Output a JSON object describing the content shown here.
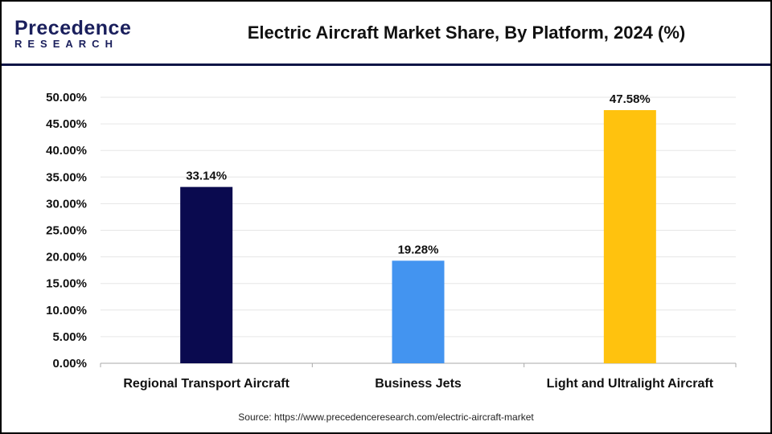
{
  "logo": {
    "line1": "Precedence",
    "line2": "RESEARCH"
  },
  "source": "Source: https://www.precedenceresearch.com/electric-aircraft-market",
  "chart_data": {
    "type": "bar",
    "title": "Electric Aircraft Market Share, By Platform, 2024 (%)",
    "categories": [
      "Regional Transport Aircraft",
      "Business Jets",
      "Light and Ultralight Aircraft"
    ],
    "values": [
      33.14,
      19.28,
      47.58
    ],
    "data_labels": [
      "33.14%",
      "19.28%",
      "47.58%"
    ],
    "colors": [
      "#0a0a4f",
      "#4394f0",
      "#ffc20e"
    ],
    "ylim": [
      0,
      50
    ],
    "yticks": [
      "0.00%",
      "5.00%",
      "10.00%",
      "15.00%",
      "20.00%",
      "25.00%",
      "30.00%",
      "35.00%",
      "40.00%",
      "45.00%",
      "50.00%"
    ],
    "grid": true,
    "xlabel": "",
    "ylabel": ""
  }
}
